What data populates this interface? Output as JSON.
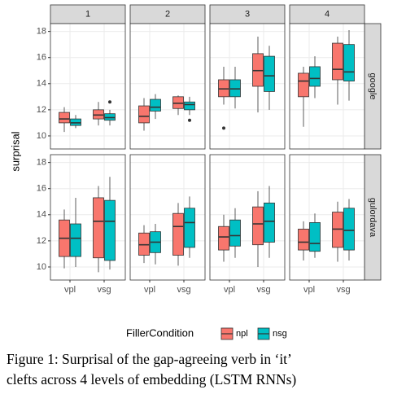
{
  "chart_data": {
    "type": "box",
    "ylabel": "surprisal",
    "legend_title": "FillerCondition",
    "caption": [
      "Figure 1:  Surprisal of the gap-agreeing verb in ‘it’",
      "clefts across 4 levels of embedding (LSTM RNNs)"
    ],
    "facet_cols": [
      "1",
      "2",
      "3",
      "4"
    ],
    "facet_rows": [
      "google",
      "gulordava"
    ],
    "categories": [
      "vpl",
      "vsg"
    ],
    "series": [
      {
        "name": "npl",
        "color": "#F8766D"
      },
      {
        "name": "nsg",
        "color": "#00BFC4"
      }
    ],
    "ylim": [
      9,
      18.6
    ],
    "yticks": [
      10,
      12,
      14,
      16,
      18
    ],
    "grid": true,
    "panels": [
      [
        [
          [
            {
              "low": 10.3,
              "q1": 11.0,
              "median": 11.3,
              "q3": 11.8,
              "high": 12.2
            },
            {
              "low": 10.8,
              "q1": 11.3,
              "median": 11.6,
              "q3": 12.0,
              "high": 12.6
            }
          ],
          [
            {
              "low": 10.6,
              "q1": 10.8,
              "median": 11.0,
              "q3": 11.3,
              "high": 11.6
            },
            {
              "low": 10.8,
              "q1": 11.2,
              "median": 11.4,
              "q3": 11.7,
              "high": 12.0,
              "outliers": [
                12.6
              ]
            }
          ]
        ],
        [
          [
            {
              "low": 10.4,
              "q1": 11.0,
              "median": 11.5,
              "q3": 12.3,
              "high": 12.9
            },
            {
              "low": 11.6,
              "q1": 12.1,
              "median": 12.5,
              "q3": 13.0,
              "high": 13.1
            }
          ],
          [
            {
              "low": 11.3,
              "q1": 11.9,
              "median": 12.2,
              "q3": 12.8,
              "high": 13.2
            },
            {
              "low": 11.6,
              "q1": 12.0,
              "median": 12.4,
              "q3": 12.6,
              "high": 13.0,
              "outliers": [
                11.2
              ]
            }
          ]
        ],
        [
          [
            {
              "low": 12.4,
              "q1": 13.0,
              "median": 13.6,
              "q3": 14.3,
              "high": 15.3,
              "outliers": [
                10.6
              ]
            },
            {
              "low": 11.8,
              "q1": 13.8,
              "median": 15.0,
              "q3": 16.3,
              "high": 17.6
            }
          ],
          [
            {
              "low": 12.1,
              "q1": 13.0,
              "median": 13.6,
              "q3": 14.3,
              "high": 15.3
            },
            {
              "low": 12.0,
              "q1": 13.4,
              "median": 14.6,
              "q3": 16.1,
              "high": 16.9
            }
          ]
        ],
        [
          [
            {
              "low": 10.7,
              "q1": 13.0,
              "median": 14.2,
              "q3": 14.8,
              "high": 15.3
            },
            {
              "low": 12.4,
              "q1": 14.3,
              "median": 15.1,
              "q3": 17.1,
              "high": 17.6
            }
          ],
          [
            {
              "low": 12.9,
              "q1": 13.8,
              "median": 14.4,
              "q3": 15.3,
              "high": 16.1
            },
            {
              "low": 12.7,
              "q1": 14.2,
              "median": 14.9,
              "q3": 17.0,
              "high": 18.1
            }
          ]
        ]
      ],
      [
        [
          [
            {
              "low": 9.9,
              "q1": 10.8,
              "median": 12.2,
              "q3": 13.6,
              "high": 14.4
            },
            {
              "low": 9.6,
              "q1": 10.7,
              "median": 13.5,
              "q3": 15.3,
              "high": 16.2
            }
          ],
          [
            {
              "low": 10.0,
              "q1": 10.8,
              "median": 12.2,
              "q3": 13.3,
              "high": 15.3
            },
            {
              "low": 9.8,
              "q1": 10.5,
              "median": 13.5,
              "q3": 15.1,
              "high": 16.9
            }
          ]
        ],
        [
          [
            {
              "low": 10.3,
              "q1": 10.9,
              "median": 11.7,
              "q3": 12.6,
              "high": 13.2
            },
            {
              "low": 10.1,
              "q1": 10.9,
              "median": 13.1,
              "q3": 14.1,
              "high": 14.9
            }
          ],
          [
            {
              "low": 10.2,
              "q1": 11.1,
              "median": 11.9,
              "q3": 12.7,
              "high": 13.3
            },
            {
              "low": 10.7,
              "q1": 11.5,
              "median": 13.4,
              "q3": 14.5,
              "high": 15.4
            }
          ]
        ],
        [
          [
            {
              "low": 10.4,
              "q1": 11.3,
              "median": 12.3,
              "q3": 13.1,
              "high": 14.0
            },
            {
              "low": 10.0,
              "q1": 11.7,
              "median": 13.3,
              "q3": 14.6,
              "high": 15.8
            }
          ],
          [
            {
              "low": 10.7,
              "q1": 11.6,
              "median": 12.4,
              "q3": 13.6,
              "high": 14.5
            },
            {
              "low": 10.7,
              "q1": 11.9,
              "median": 13.5,
              "q3": 14.9,
              "high": 16.2
            }
          ]
        ],
        [
          [
            {
              "low": 10.5,
              "q1": 11.3,
              "median": 11.9,
              "q3": 12.9,
              "high": 13.5
            },
            {
              "low": 10.4,
              "q1": 11.5,
              "median": 12.9,
              "q3": 14.2,
              "high": 15.0
            }
          ],
          [
            {
              "low": 10.7,
              "q1": 11.2,
              "median": 11.8,
              "q3": 13.4,
              "high": 14.1
            },
            {
              "low": 10.5,
              "q1": 11.3,
              "median": 12.8,
              "q3": 14.5,
              "high": 15.2
            }
          ]
        ]
      ]
    ]
  }
}
